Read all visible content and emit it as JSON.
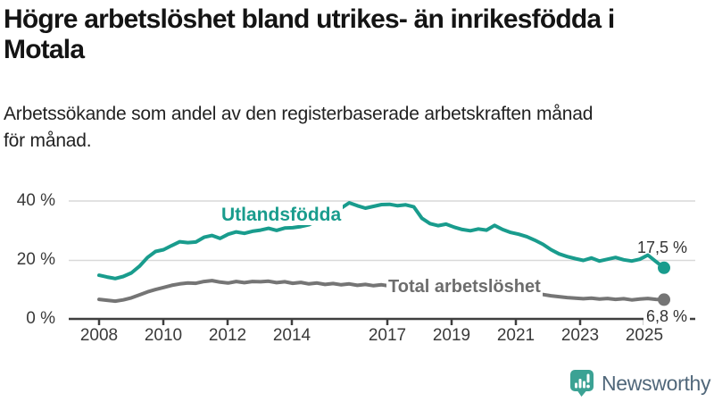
{
  "header": {
    "title_lines": [
      "Högre arbetslöshet bland utrikes- än inrikesfödda i",
      "Motala"
    ],
    "subtitle_lines": [
      "Arbetssökande som andel av den registerbaserade arbetskraften månad",
      "för månad."
    ]
  },
  "chart_data": {
    "type": "line",
    "title": "Högre arbetslöshet bland utrikes- än inrikesfödda i Motala",
    "subtitle": "Arbetssökande som andel av den registerbaserade arbetskraften månad för månad.",
    "unit": "%",
    "x_start_year": 2008,
    "x_step_years": 0.25,
    "x_end_year": 2025.5,
    "ylim": [
      0,
      44
    ],
    "grid": "horizontal",
    "legend_position": "inline-labels",
    "x_ticks": [
      "2008",
      "2010",
      "2012",
      "2014",
      "2017",
      "2019",
      "2021",
      "2023",
      "2025"
    ],
    "y_ticks": [
      "40 %",
      "20 %",
      "0 %"
    ],
    "series": [
      {
        "name": "Utlandsfödda",
        "color": "#199C8D",
        "end_label": "17,5 %",
        "end_value": 17.5,
        "values": [
          15.0,
          14.4,
          13.9,
          14.6,
          15.8,
          18.0,
          21.0,
          23.0,
          23.6,
          25.0,
          26.3,
          26.0,
          26.2,
          27.8,
          28.4,
          27.4,
          28.8,
          29.6,
          29.1,
          29.8,
          30.2,
          30.8,
          30.1,
          30.9,
          31.0,
          31.4,
          32.0,
          33.4,
          34.8,
          36.2,
          37.6,
          39.4,
          38.4,
          37.6,
          38.2,
          38.8,
          38.9,
          38.4,
          38.7,
          38.0,
          34.2,
          32.4,
          31.7,
          32.2,
          31.2,
          30.4,
          30.0,
          30.6,
          30.2,
          31.8,
          30.4,
          29.4,
          28.8,
          28.0,
          26.8,
          25.4,
          23.6,
          22.2,
          21.3,
          20.6,
          20.0,
          20.8,
          19.8,
          20.4,
          21.0,
          20.2,
          19.8,
          20.4,
          21.8,
          19.6,
          17.5
        ]
      },
      {
        "name": "Total arbetslöshet",
        "color": "#757575",
        "end_label": "6,8 %",
        "end_value": 6.8,
        "values": [
          6.9,
          6.6,
          6.3,
          6.7,
          7.4,
          8.4,
          9.4,
          10.2,
          10.9,
          11.6,
          12.1,
          12.4,
          12.3,
          12.9,
          13.2,
          12.7,
          12.4,
          12.9,
          12.5,
          12.9,
          12.8,
          13.0,
          12.5,
          12.8,
          12.3,
          12.6,
          12.1,
          12.4,
          11.9,
          12.2,
          11.8,
          12.1,
          11.6,
          11.9,
          11.5,
          11.8,
          11.4,
          11.6,
          11.2,
          11.0,
          10.6,
          10.3,
          10.0,
          10.1,
          9.8,
          9.6,
          9.4,
          9.7,
          9.9,
          10.8,
          10.3,
          10.0,
          9.6,
          9.3,
          8.9,
          8.5,
          8.1,
          7.8,
          7.5,
          7.3,
          7.1,
          7.3,
          7.0,
          7.2,
          6.9,
          7.1,
          6.7,
          7.0,
          7.2,
          6.9,
          6.8
        ]
      }
    ]
  },
  "colors": {
    "accent_teal": "#199C8D",
    "line_gray": "#757575",
    "gridline": "#d9d9d9",
    "axis": "#3f3f3f",
    "logo_teal": "#3BA294",
    "logo_text": "#50677A"
  },
  "footer": {
    "brand": "Newsworthy"
  }
}
